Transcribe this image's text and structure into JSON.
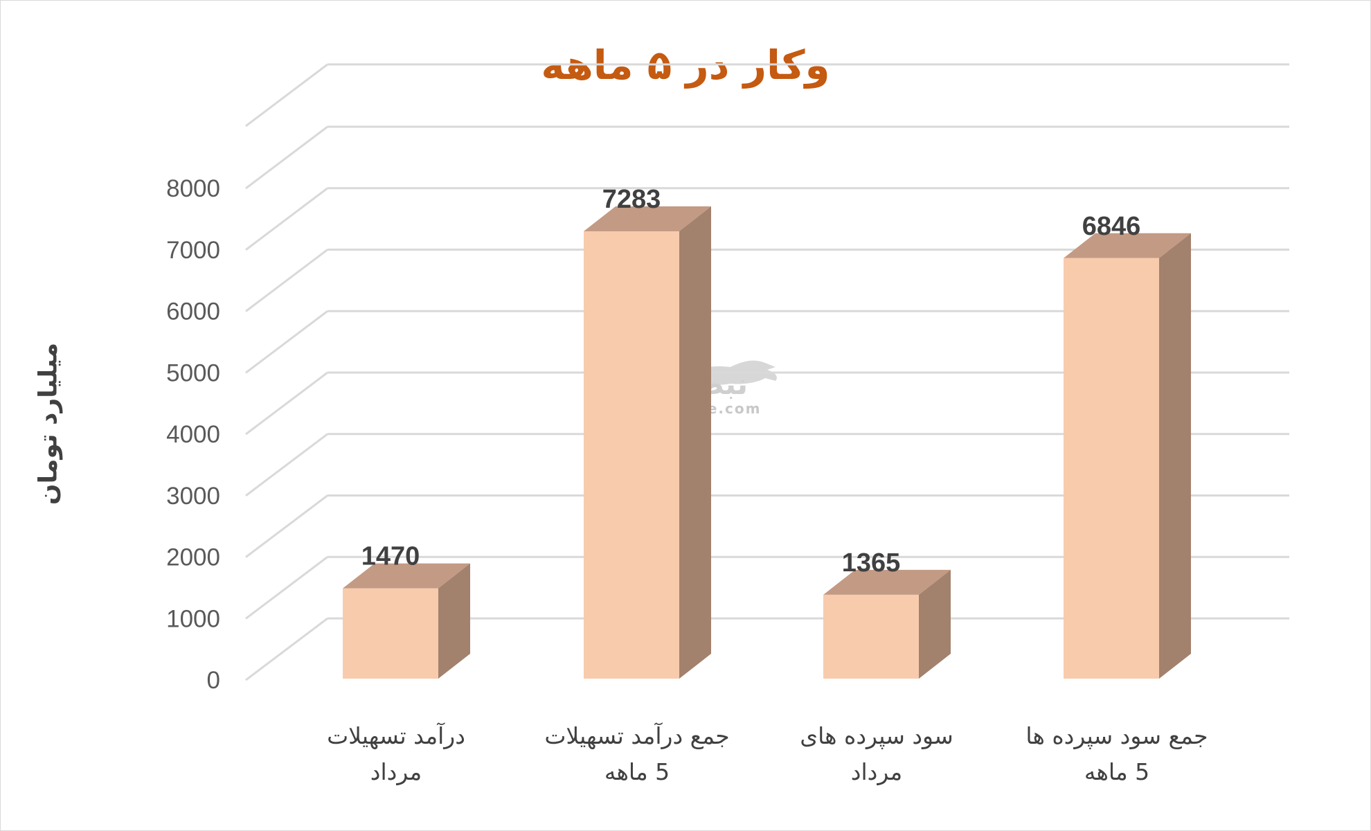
{
  "chart_data": {
    "type": "bar",
    "title": "وکار در ۵ ماهه",
    "ylabel": "میلیارد تومان",
    "xlabel": "",
    "ylim": [
      0,
      8000
    ],
    "yticks": [
      0,
      1000,
      2000,
      3000,
      4000,
      5000,
      6000,
      7000,
      8000
    ],
    "grid": true,
    "style": "3d-column",
    "categories": [
      [
        "درآمد تسهیلات",
        "مرداد"
      ],
      [
        "جمع درآمد تسهیلات",
        "5 ماهه"
      ],
      [
        "سود سپرده های",
        "مرداد"
      ],
      [
        "جمع سود سپرده ها",
        "5 ماهه"
      ]
    ],
    "values": [
      1470,
      7283,
      1365,
      6846
    ],
    "colors": {
      "front": "#f8cbad",
      "top": "#c39a84",
      "side": "#a2816d",
      "grid": "#d9d9d9",
      "title": "#c55a11"
    }
  },
  "watermark": {
    "text_fa": "نبض بورس",
    "text_en": "nabzebourse.com"
  }
}
